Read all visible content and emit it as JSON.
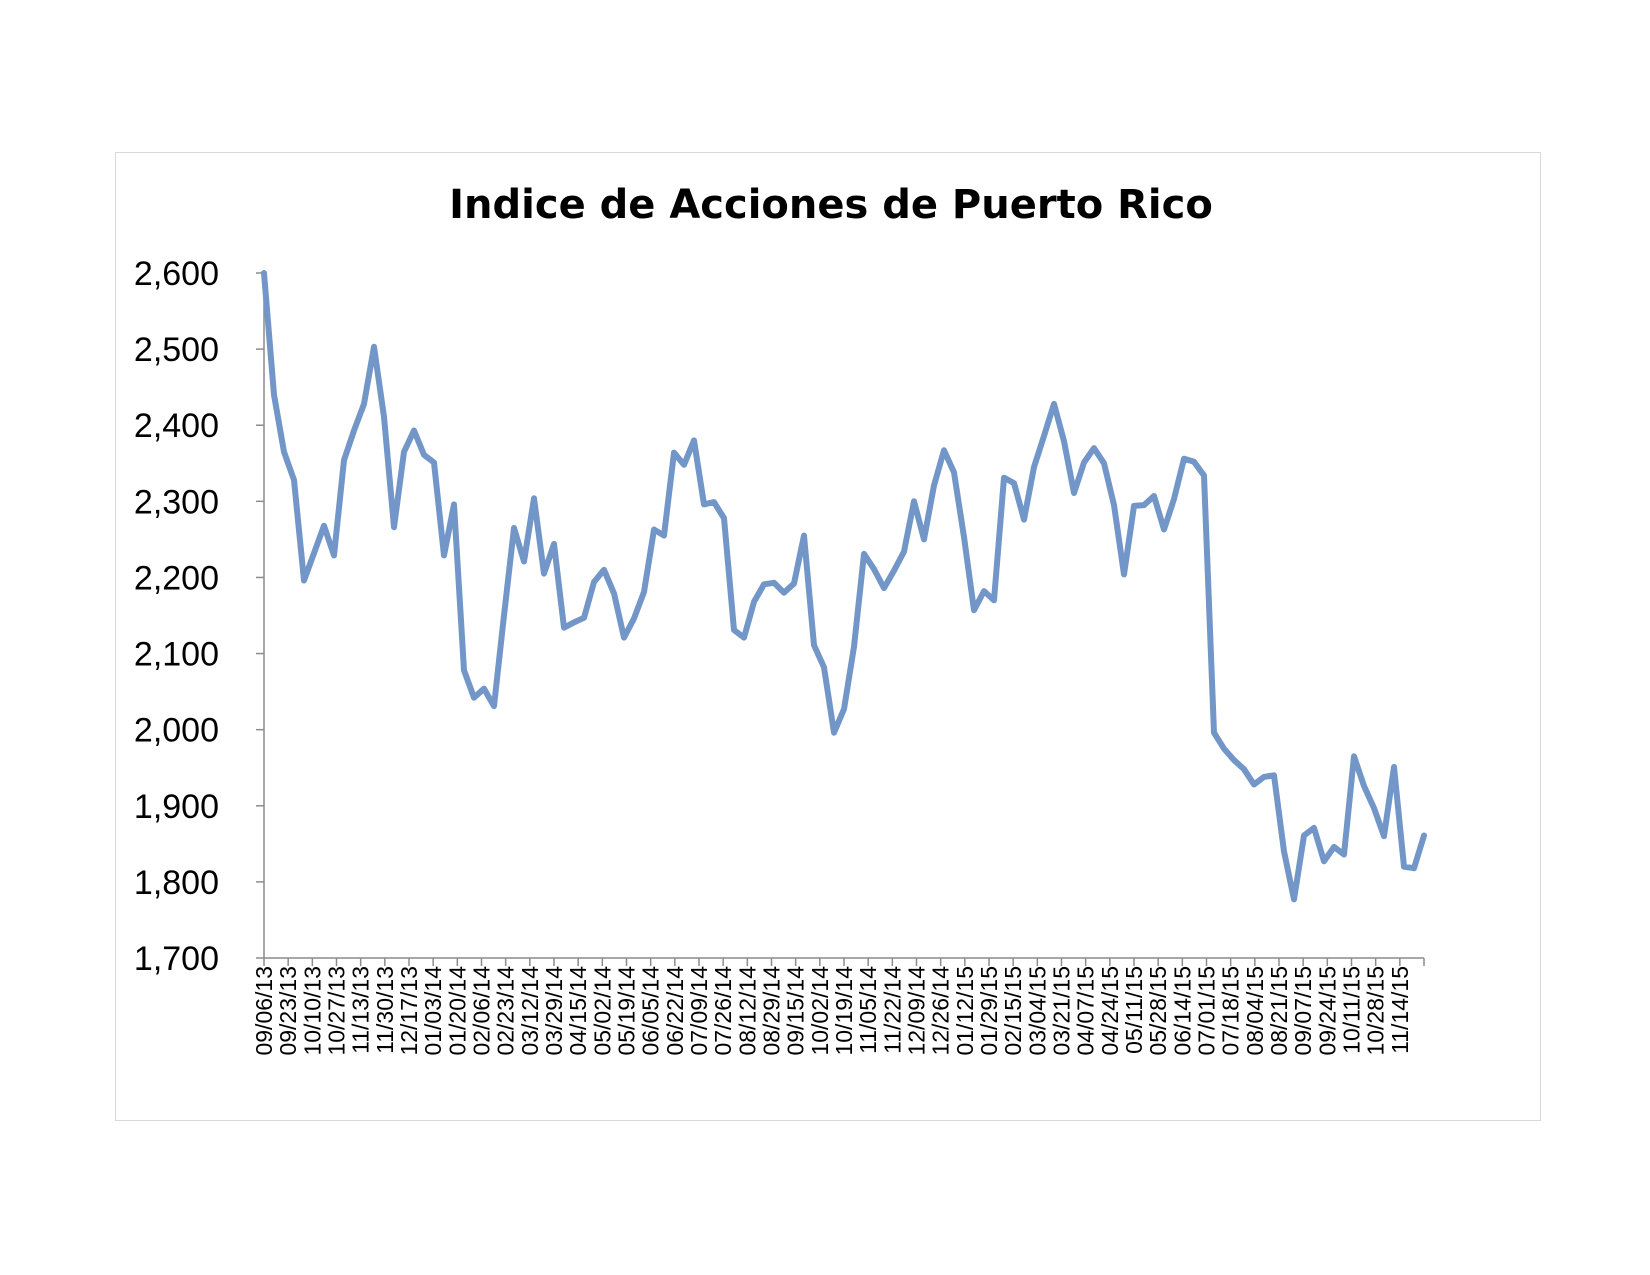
{
  "chart_data": {
    "type": "line",
    "title": "Indice de Acciones de Puerto Rico",
    "xlabel": "",
    "ylabel": "",
    "ylim": [
      1700,
      2600
    ],
    "yticks": [
      "2,600",
      "2,500",
      "2,400",
      "2,300",
      "2,200",
      "2,100",
      "2,000",
      "1,900",
      "1,800",
      "1,700"
    ],
    "ytick_values": [
      2600,
      2500,
      2400,
      2300,
      2200,
      2100,
      2000,
      1900,
      1800,
      1700
    ],
    "xtick_labels": [
      "09/06/13",
      "09/23/13",
      "10/10/13",
      "10/27/13",
      "11/13/13",
      "11/30/13",
      "12/17/13",
      "01/03/14",
      "01/20/14",
      "02/06/14",
      "02/23/14",
      "03/12/14",
      "03/29/14",
      "04/15/14",
      "05/02/14",
      "05/19/14",
      "06/05/14",
      "06/22/14",
      "07/09/14",
      "07/26/14",
      "08/12/14",
      "08/29/14",
      "09/15/14",
      "10/02/14",
      "10/19/14",
      "11/05/14",
      "11/22/14",
      "12/09/14",
      "12/26/14",
      "01/12/15",
      "01/29/15",
      "02/15/15",
      "03/04/15",
      "03/21/15",
      "04/07/15",
      "04/24/15",
      "05/11/15",
      "05/28/15",
      "06/14/15",
      "07/01/15",
      "07/18/15",
      "08/04/15",
      "08/21/15",
      "09/07/15",
      "09/24/15",
      "10/11/15",
      "10/28/15",
      "11/14/15"
    ],
    "grid": false,
    "legend": "none",
    "series": [
      {
        "color": "#7396c8",
        "values": [
          2600,
          2440,
          2365,
          2328,
          2196,
          2232,
          2268,
          2229,
          2354,
          2393,
          2428,
          2503,
          2411,
          2266,
          2365,
          2393,
          2361,
          2351,
          2229,
          2296,
          2078,
          2042,
          2054,
          2031,
          2150,
          2265,
          2221,
          2304,
          2205,
          2244,
          2134,
          2141,
          2147,
          2194,
          2210,
          2179,
          2121,
          2146,
          2181,
          2263,
          2255,
          2364,
          2348,
          2380,
          2296,
          2299,
          2278,
          2131,
          2121,
          2168,
          2191,
          2193,
          2180,
          2192,
          2255,
          2111,
          2082,
          1996,
          2027,
          2109,
          2231,
          2211,
          2186,
          2209,
          2234,
          2300,
          2250,
          2321,
          2367,
          2338,
          2253,
          2157,
          2182,
          2170,
          2331,
          2324,
          2276,
          2345,
          2386,
          2428,
          2379,
          2311,
          2351,
          2370,
          2350,
          2295,
          2204,
          2294,
          2295,
          2307,
          2263,
          2303,
          2356,
          2352,
          2334,
          1996,
          1975,
          1960,
          1948,
          1928,
          1938,
          1940,
          1840,
          1777,
          1861,
          1871,
          1827,
          1846,
          1836,
          1965,
          1926,
          1897,
          1860,
          1951,
          1820,
          1818,
          1861
        ]
      }
    ]
  }
}
